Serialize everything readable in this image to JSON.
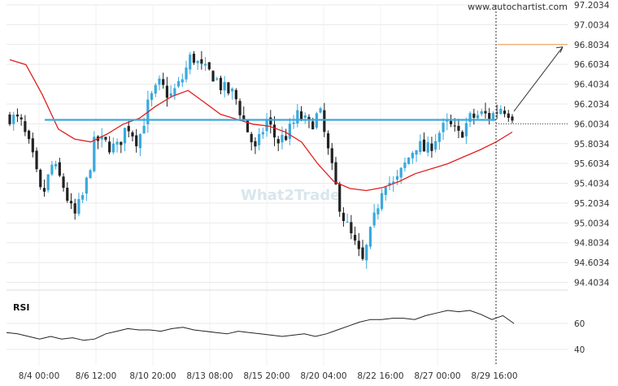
{
  "watermark": "www.autochartist.com",
  "logo_text": "What2Trade",
  "chart_data": [
    {
      "type": "candlestick",
      "y_ticks": [
        97.2034,
        97.0034,
        96.8034,
        96.6034,
        96.4034,
        96.2034,
        96.0034,
        95.8034,
        95.6034,
        95.4034,
        95.2034,
        95.0034,
        94.8034,
        94.6034,
        94.4034
      ],
      "y_tick_labels": [
        "97.2034",
        "97.0034",
        "96.8034",
        "96.6034",
        "96.4034",
        "96.2034",
        "96.0034",
        "95.8034",
        "95.6034",
        "95.4034",
        "95.2034",
        "95.0034",
        "94.8034",
        "94.6034",
        "94.4034"
      ],
      "ylim": [
        94.4034,
        97.2034
      ],
      "x_tick_labels": [
        "8/4 00:00",
        "8/6 12:00",
        "8/10 20:00",
        "8/13 08:00",
        "8/15 20:00",
        "8/20 04:00",
        "8/22 16:00",
        "8/27 00:00",
        "8/29 16:00"
      ],
      "close_path": [
        96.08,
        96.02,
        95.72,
        95.25,
        95.6,
        95.38,
        95.05,
        95.32,
        95.85,
        95.8,
        95.75,
        96.0,
        95.82,
        96.22,
        96.4,
        96.28,
        96.42,
        96.7,
        96.55,
        96.5,
        96.35,
        96.3,
        96.0,
        95.72,
        96.05,
        95.82,
        95.9,
        96.1,
        95.98,
        96.12,
        95.6,
        95.12,
        94.85,
        94.6,
        95.0,
        95.45,
        95.38,
        95.6,
        95.8,
        95.72,
        95.9,
        96.0,
        95.88,
        96.05,
        96.1,
        96.08,
        96.18,
        96.1
      ],
      "sma": [
        96.65,
        96.6,
        96.3,
        95.95,
        95.85,
        95.82,
        95.9,
        96.0,
        96.06,
        96.18,
        96.28,
        96.34,
        96.22,
        96.1,
        96.05,
        96.0,
        95.98,
        95.92,
        95.82,
        95.6,
        95.42,
        95.35,
        95.33,
        95.36,
        95.42,
        95.5,
        95.55,
        95.6,
        95.67,
        95.74,
        95.82,
        95.92
      ],
      "support_level": 96.0434,
      "target_level": 96.8034,
      "target_line_color": "#f0a868",
      "support_line_color": "#3aa9dd",
      "up_color": "#3aa9dd",
      "down_color": "#222222",
      "sma_color": "#e02020"
    },
    {
      "type": "line",
      "label": "RSI",
      "y_ticks": [
        60,
        40
      ],
      "y_tick_labels": [
        "60",
        "40"
      ],
      "ylim": [
        30,
        75
      ],
      "values": [
        53,
        52,
        50,
        48,
        50,
        48,
        49,
        47,
        48,
        52,
        54,
        56,
        55,
        55,
        54,
        56,
        57,
        55,
        54,
        53,
        52,
        54,
        53,
        52,
        51,
        50,
        51,
        52,
        50,
        52,
        55,
        58,
        61,
        63,
        63,
        64,
        64,
        63,
        66,
        68,
        70,
        69,
        70,
        67,
        63,
        66,
        60
      ],
      "line_color": "#222222"
    }
  ]
}
